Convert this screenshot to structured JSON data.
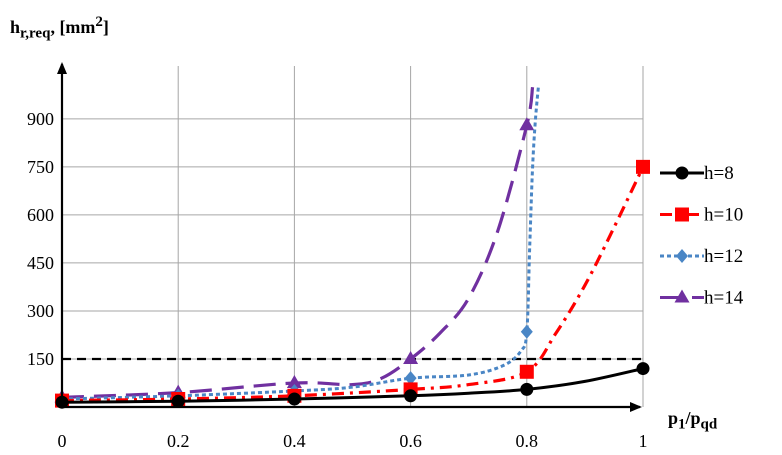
{
  "chart_data": {
    "type": "line",
    "ylabel": {
      "main": "h",
      "sub": "r,req",
      "unit_pre": ", [mm",
      "unit_sup": "2",
      "unit_post": "]"
    },
    "xlabel": {
      "p": "p",
      "p_sub": "1",
      "slash": "/p",
      "q_sub": "qd"
    },
    "xlim": [
      0,
      1
    ],
    "ylim": [
      0,
      1065
    ],
    "xticks": [
      0,
      0.2,
      0.4,
      0.6,
      0.8,
      1
    ],
    "xtick_labels": [
      "0",
      "0.2",
      "0.4",
      "0.6",
      "0.8",
      "1"
    ],
    "yticks": [
      150,
      300,
      450,
      600,
      750,
      900
    ],
    "ytick_labels": [
      "150",
      "300",
      "450",
      "600",
      "750",
      "900"
    ],
    "grid": true,
    "legend_position": "right",
    "reference_line": {
      "y": 150,
      "style": "dashed",
      "color": "#000000"
    },
    "series": [
      {
        "name": "h=8",
        "color": "#000000",
        "marker": "circle",
        "dash": "",
        "markers": [
          [
            0,
            15
          ],
          [
            0.2,
            18
          ],
          [
            0.4,
            25
          ],
          [
            0.6,
            35
          ],
          [
            0.8,
            55
          ],
          [
            1,
            120
          ]
        ],
        "curve": [
          [
            0,
            15
          ],
          [
            0.2,
            18
          ],
          [
            0.4,
            25
          ],
          [
            0.6,
            35
          ],
          [
            0.7,
            43
          ],
          [
            0.8,
            55
          ],
          [
            0.9,
            80
          ],
          [
            1,
            120
          ]
        ]
      },
      {
        "name": "h=10",
        "color": "#ff0000",
        "marker": "square",
        "dash": "12,6,3,6",
        "markers": [
          [
            0,
            20
          ],
          [
            0.2,
            25
          ],
          [
            0.4,
            35
          ],
          [
            0.6,
            55
          ],
          [
            0.8,
            110
          ],
          [
            1,
            750
          ]
        ],
        "curve": [
          [
            0,
            20
          ],
          [
            0.2,
            25
          ],
          [
            0.4,
            35
          ],
          [
            0.6,
            55
          ],
          [
            0.7,
            70
          ],
          [
            0.8,
            110
          ],
          [
            0.85,
            230
          ],
          [
            0.9,
            380
          ],
          [
            0.95,
            560
          ],
          [
            1,
            750
          ]
        ]
      },
      {
        "name": "h=12",
        "color": "#4a86c5",
        "marker": "diamond",
        "dash": "4,3",
        "markers": [
          [
            0,
            25
          ],
          [
            0.2,
            35
          ],
          [
            0.4,
            50
          ],
          [
            0.6,
            90
          ],
          [
            0.8,
            235
          ]
        ],
        "curve": [
          [
            0,
            25
          ],
          [
            0.2,
            35
          ],
          [
            0.4,
            50
          ],
          [
            0.5,
            62
          ],
          [
            0.6,
            90
          ],
          [
            0.7,
            100
          ],
          [
            0.76,
            130
          ],
          [
            0.79,
            175
          ],
          [
            0.8,
            235
          ],
          [
            0.805,
            500
          ],
          [
            0.81,
            750
          ],
          [
            0.815,
            900
          ],
          [
            0.82,
            1000
          ]
        ]
      },
      {
        "name": "h=14",
        "color": "#7030a0",
        "marker": "triangle",
        "dash": "22,10",
        "markers": [
          [
            0,
            30
          ],
          [
            0.2,
            45
          ],
          [
            0.4,
            75
          ],
          [
            0.6,
            150
          ],
          [
            0.8,
            880
          ]
        ],
        "curve": [
          [
            0,
            30
          ],
          [
            0.2,
            45
          ],
          [
            0.4,
            75
          ],
          [
            0.5,
            70
          ],
          [
            0.55,
            90
          ],
          [
            0.6,
            150
          ],
          [
            0.65,
            230
          ],
          [
            0.7,
            340
          ],
          [
            0.75,
            550
          ],
          [
            0.8,
            880
          ],
          [
            0.81,
            1000
          ]
        ]
      }
    ]
  }
}
